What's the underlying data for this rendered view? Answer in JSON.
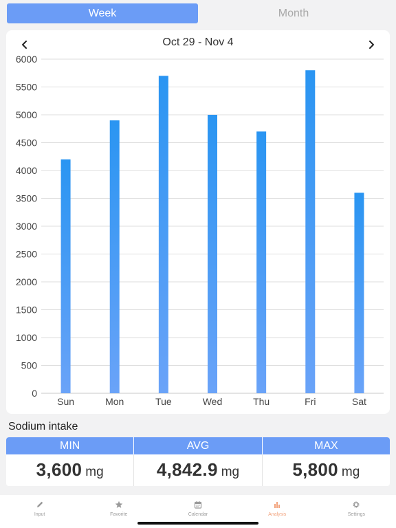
{
  "segment": {
    "week_label": "Week",
    "month_label": "Month",
    "selected": "Week"
  },
  "range": {
    "title": "Oct 29 - Nov 4"
  },
  "colors": {
    "accent": "#6b9cf6",
    "bar_top": "#2a95f2",
    "bar_bottom": "#6aa3f8",
    "active_tab": "#f2a37d"
  },
  "chart_data": {
    "type": "bar",
    "categories": [
      "Sun",
      "Mon",
      "Tue",
      "Wed",
      "Thu",
      "Fri",
      "Sat"
    ],
    "values": [
      4200,
      4900,
      5700,
      5000,
      4700,
      5800,
      3600
    ],
    "ylim": [
      0,
      6000
    ],
    "yticks": [
      "0",
      "500",
      "1000",
      "1500",
      "2000",
      "2500",
      "3000",
      "3500",
      "4000",
      "4500",
      "5000",
      "5500",
      "6000"
    ],
    "grid": true
  },
  "summary": {
    "title": "Sodium intake",
    "min_label": "MIN",
    "avg_label": "AVG",
    "max_label": "MAX",
    "min_value": "3,600",
    "avg_value": "4,842.9",
    "max_value": "5,800",
    "unit": "mg"
  },
  "tabs": [
    {
      "label": "Input",
      "icon": "pencil-icon"
    },
    {
      "label": "Favorite",
      "icon": "star-icon"
    },
    {
      "label": "Calendar",
      "icon": "calendar-icon"
    },
    {
      "label": "Analysis",
      "icon": "bar-chart-icon",
      "active": true
    },
    {
      "label": "Settings",
      "icon": "gear-icon"
    }
  ]
}
